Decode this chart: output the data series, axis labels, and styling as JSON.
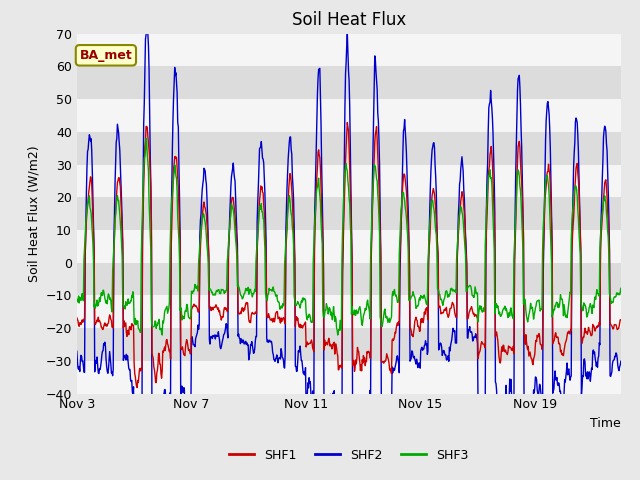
{
  "title": "Soil Heat Flux",
  "ylabel": "Soil Heat Flux (W/m2)",
  "xlabel": "Time",
  "ylim": [
    -40,
    70
  ],
  "yticks": [
    -40,
    -30,
    -20,
    -10,
    0,
    10,
    20,
    30,
    40,
    50,
    60,
    70
  ],
  "xtick_labels": [
    "Nov 3",
    "Nov 7",
    "Nov 11",
    "Nov 15",
    "Nov 19"
  ],
  "xtick_positions": [
    0,
    4,
    8,
    12,
    16
  ],
  "color_shf1": "#cc0000",
  "color_shf2": "#0000cc",
  "color_shf3": "#00aa00",
  "line_width": 1.0,
  "annotation_text": "BA_met",
  "annotation_bg": "#ffffcc",
  "annotation_border": "#888800",
  "legend_labels": [
    "SHF1",
    "SHF2",
    "SHF3"
  ],
  "bg_color": "#e8e8e8",
  "band_white": "#f5f5f5",
  "band_gray": "#dcdcdc",
  "title_fontsize": 12,
  "label_fontsize": 9,
  "tick_fontsize": 9,
  "n_days": 19,
  "samples_per_day": 48,
  "xlabel_fontsize": 9
}
